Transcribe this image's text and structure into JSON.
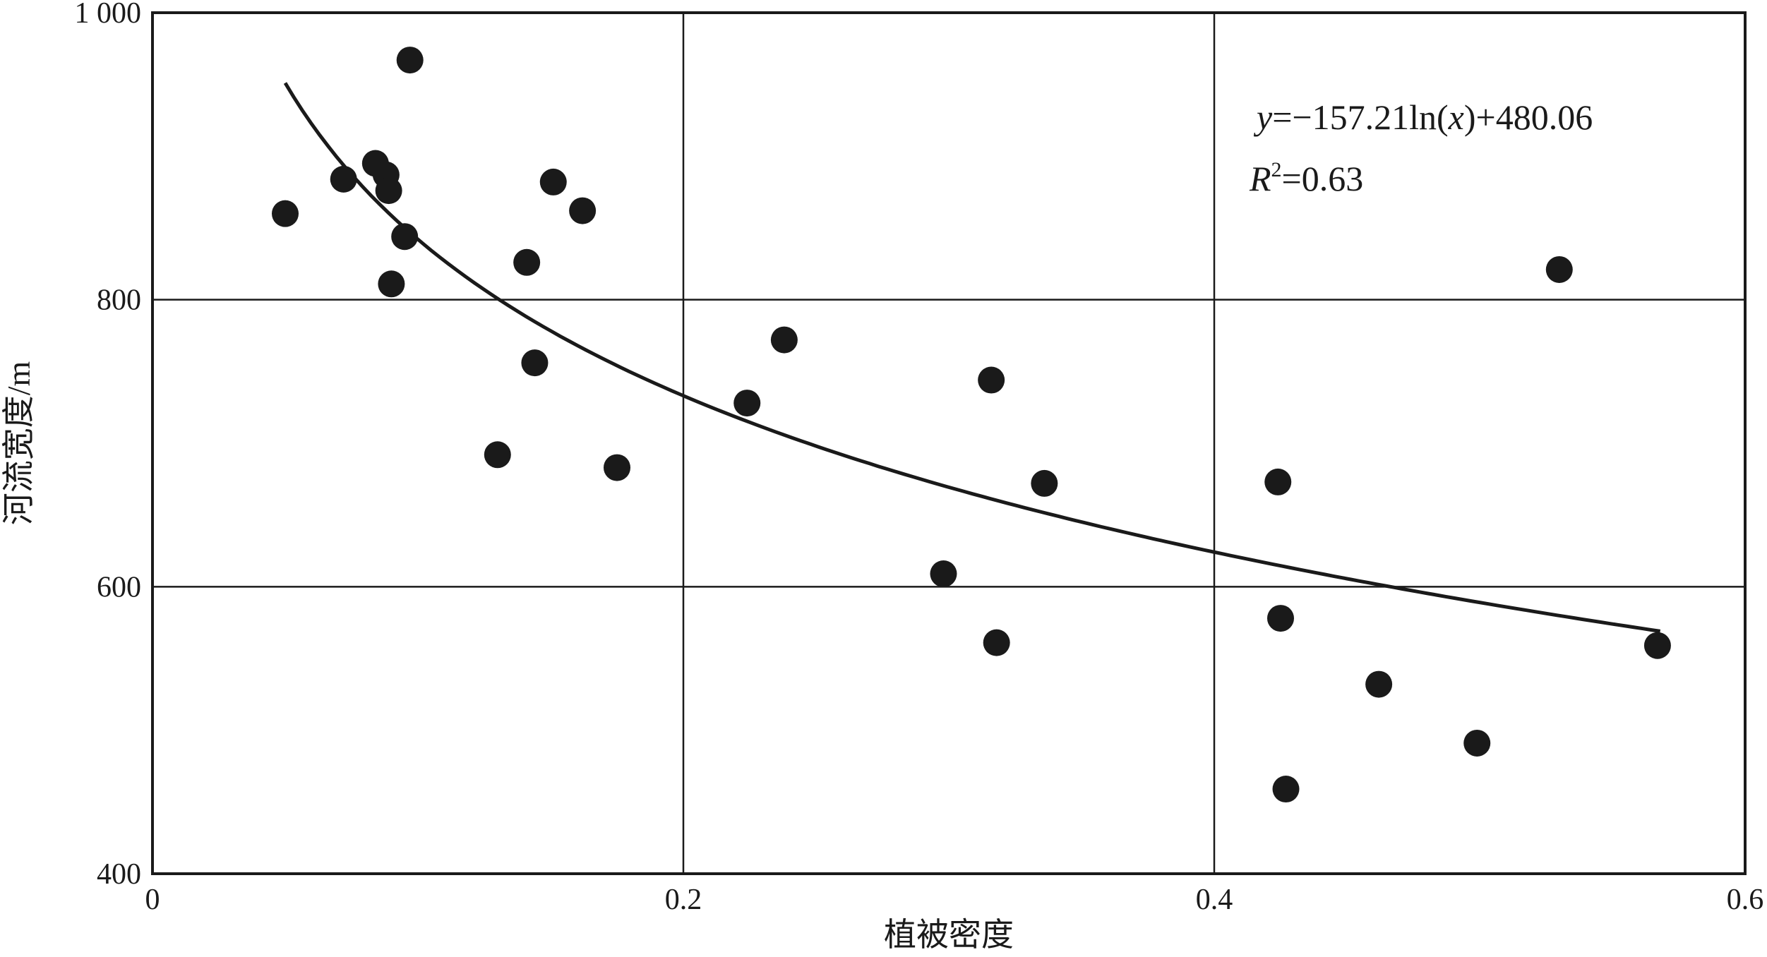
{
  "chart_data": {
    "type": "scatter",
    "title": "",
    "xlabel": "植被密度",
    "ylabel": "河流宽度/m",
    "xlim": [
      0,
      0.6
    ],
    "ylim": [
      400,
      1000
    ],
    "x_ticks": [
      {
        "value": 0,
        "label": "0"
      },
      {
        "value": 0.2,
        "label": "0.2"
      },
      {
        "value": 0.4,
        "label": "0.4"
      },
      {
        "value": 0.6,
        "label": "0.6"
      }
    ],
    "y_ticks": [
      {
        "value": 400,
        "label": "400"
      },
      {
        "value": 600,
        "label": "600"
      },
      {
        "value": 800,
        "label": "800"
      },
      {
        "value": 1000,
        "label": "1 000"
      }
    ],
    "grid": true,
    "colors": {
      "points": "#1a1a1a",
      "line": "#1a1a1a",
      "grid": "#1a1a1a"
    },
    "points": [
      {
        "x": 0.05,
        "y": 860
      },
      {
        "x": 0.072,
        "y": 884
      },
      {
        "x": 0.084,
        "y": 895
      },
      {
        "x": 0.088,
        "y": 887
      },
      {
        "x": 0.089,
        "y": 876
      },
      {
        "x": 0.09,
        "y": 811
      },
      {
        "x": 0.095,
        "y": 844
      },
      {
        "x": 0.097,
        "y": 967
      },
      {
        "x": 0.13,
        "y": 692
      },
      {
        "x": 0.141,
        "y": 826
      },
      {
        "x": 0.144,
        "y": 756
      },
      {
        "x": 0.151,
        "y": 882
      },
      {
        "x": 0.162,
        "y": 862
      },
      {
        "x": 0.175,
        "y": 683
      },
      {
        "x": 0.224,
        "y": 728
      },
      {
        "x": 0.238,
        "y": 772
      },
      {
        "x": 0.298,
        "y": 609
      },
      {
        "x": 0.316,
        "y": 744
      },
      {
        "x": 0.318,
        "y": 561
      },
      {
        "x": 0.336,
        "y": 672
      },
      {
        "x": 0.424,
        "y": 673
      },
      {
        "x": 0.425,
        "y": 578
      },
      {
        "x": 0.427,
        "y": 459
      },
      {
        "x": 0.462,
        "y": 532
      },
      {
        "x": 0.499,
        "y": 491
      },
      {
        "x": 0.53,
        "y": 821
      },
      {
        "x": 0.567,
        "y": 559
      }
    ],
    "trendline": {
      "type": "logarithmic",
      "a": -157.21,
      "b": 480.06,
      "x_range": [
        0.05,
        0.568
      ]
    },
    "annotations": {
      "equation_y": "y",
      "equation_rest": "=−157.21ln(",
      "equation_x": "x",
      "equation_end": ")+480.06",
      "r2_R": "R",
      "r2_sup": "2",
      "r2_rest": "=0.63"
    }
  }
}
